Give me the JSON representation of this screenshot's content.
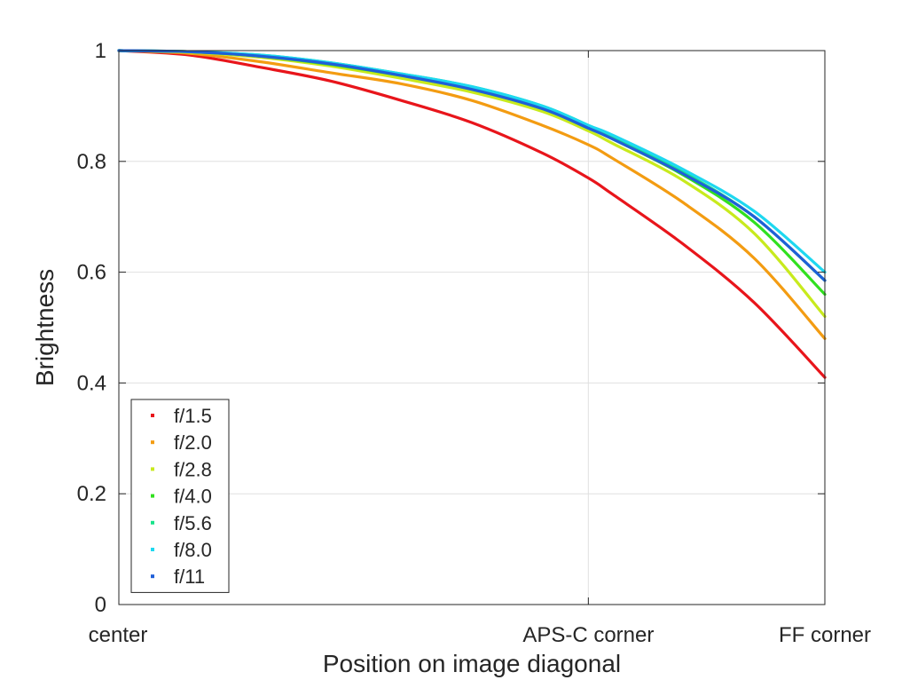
{
  "chart_data": {
    "type": "line",
    "title": "",
    "xlabel": "Position on image diagonal",
    "ylabel": "Brightness",
    "xlim": [
      0,
      1
    ],
    "ylim": [
      0,
      1
    ],
    "grid": true,
    "legend_position": "bottom-left",
    "x_ticks": [
      {
        "value": 0,
        "label": "center"
      },
      {
        "value": 0.665,
        "label": "APS-C corner"
      },
      {
        "value": 1,
        "label": "FF corner"
      }
    ],
    "y_ticks": [
      {
        "value": 0,
        "label": "0"
      },
      {
        "value": 0.2,
        "label": "0.2"
      },
      {
        "value": 0.4,
        "label": "0.4"
      },
      {
        "value": 0.6,
        "label": "0.6"
      },
      {
        "value": 0.8,
        "label": "0.8"
      },
      {
        "value": 1,
        "label": "1"
      }
    ],
    "x": [
      0,
      0.1,
      0.2,
      0.3,
      0.4,
      0.5,
      0.6,
      0.665,
      0.7,
      0.8,
      0.9,
      1.0
    ],
    "series": [
      {
        "name": "f/1.5",
        "color": "#e8151b",
        "values": [
          1.0,
          0.992,
          0.97,
          0.945,
          0.91,
          0.87,
          0.815,
          0.77,
          0.74,
          0.65,
          0.545,
          0.41
        ]
      },
      {
        "name": "f/2.0",
        "color": "#f39c12",
        "values": [
          1.0,
          0.995,
          0.98,
          0.96,
          0.94,
          0.91,
          0.865,
          0.83,
          0.805,
          0.725,
          0.625,
          0.48
        ]
      },
      {
        "name": "f/2.8",
        "color": "#c8ea1d",
        "values": [
          1.0,
          0.997,
          0.988,
          0.972,
          0.95,
          0.925,
          0.89,
          0.855,
          0.832,
          0.765,
          0.67,
          0.52
        ]
      },
      {
        "name": "f/4.0",
        "color": "#31e01f",
        "values": [
          1.0,
          0.998,
          0.99,
          0.975,
          0.955,
          0.93,
          0.895,
          0.86,
          0.84,
          0.775,
          0.69,
          0.56
        ]
      },
      {
        "name": "f/5.6",
        "color": "#19e38a",
        "values": [
          1.0,
          0.998,
          0.992,
          0.978,
          0.958,
          0.935,
          0.9,
          0.865,
          0.845,
          0.78,
          0.7,
          0.585
        ]
      },
      {
        "name": "f/8.0",
        "color": "#1ed8f0",
        "values": [
          1.0,
          0.998,
          0.992,
          0.978,
          0.958,
          0.935,
          0.9,
          0.865,
          0.847,
          0.785,
          0.71,
          0.6
        ]
      },
      {
        "name": "f/11",
        "color": "#1f5fd8",
        "values": [
          1.0,
          0.998,
          0.99,
          0.976,
          0.955,
          0.93,
          0.895,
          0.86,
          0.84,
          0.777,
          0.7,
          0.585
        ]
      }
    ]
  }
}
